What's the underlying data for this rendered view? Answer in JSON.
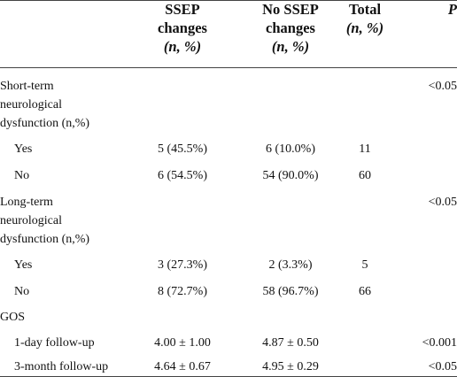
{
  "table": {
    "headers": {
      "ssep": [
        "SSEP",
        "changes",
        "(n, %)"
      ],
      "nossep": [
        "No SSEP",
        "changes",
        "(n, %)"
      ],
      "total": [
        "Total",
        "(n, %)"
      ],
      "p": "P"
    },
    "sections": {
      "short_term": {
        "title_lines": [
          "Short-term",
          "neurological",
          "dysfunction (n,%)"
        ],
        "p": "<0.05",
        "rows": [
          {
            "label": "Yes",
            "ssep": "5 (45.5%)",
            "nossep": "6 (10.0%)",
            "total": "11",
            "p": ""
          },
          {
            "label": "No",
            "ssep": "6 (54.5%)",
            "nossep": "54 (90.0%)",
            "total": "60",
            "p": ""
          }
        ]
      },
      "long_term": {
        "title_lines": [
          "Long-term",
          "neurological",
          "dysfunction (n,%)"
        ],
        "p": "<0.05",
        "rows": [
          {
            "label": "Yes",
            "ssep": "3 (27.3%)",
            "nossep": "2 (3.3%)",
            "total": "5",
            "p": ""
          },
          {
            "label": "No",
            "ssep": "8 (72.7%)",
            "nossep": "58 (96.7%)",
            "total": "66",
            "p": ""
          }
        ]
      },
      "gos": {
        "title": "GOS",
        "rows": [
          {
            "label": "1-day follow-up",
            "ssep": "4.00 ± 1.00",
            "nossep": "4.87 ± 0.50",
            "total": "",
            "p": "<0.001"
          },
          {
            "label": "3-month follow-up",
            "ssep": "4.64 ± 0.67",
            "nossep": "4.95 ± 0.29",
            "total": "",
            "p": "<0.05"
          }
        ]
      }
    }
  }
}
